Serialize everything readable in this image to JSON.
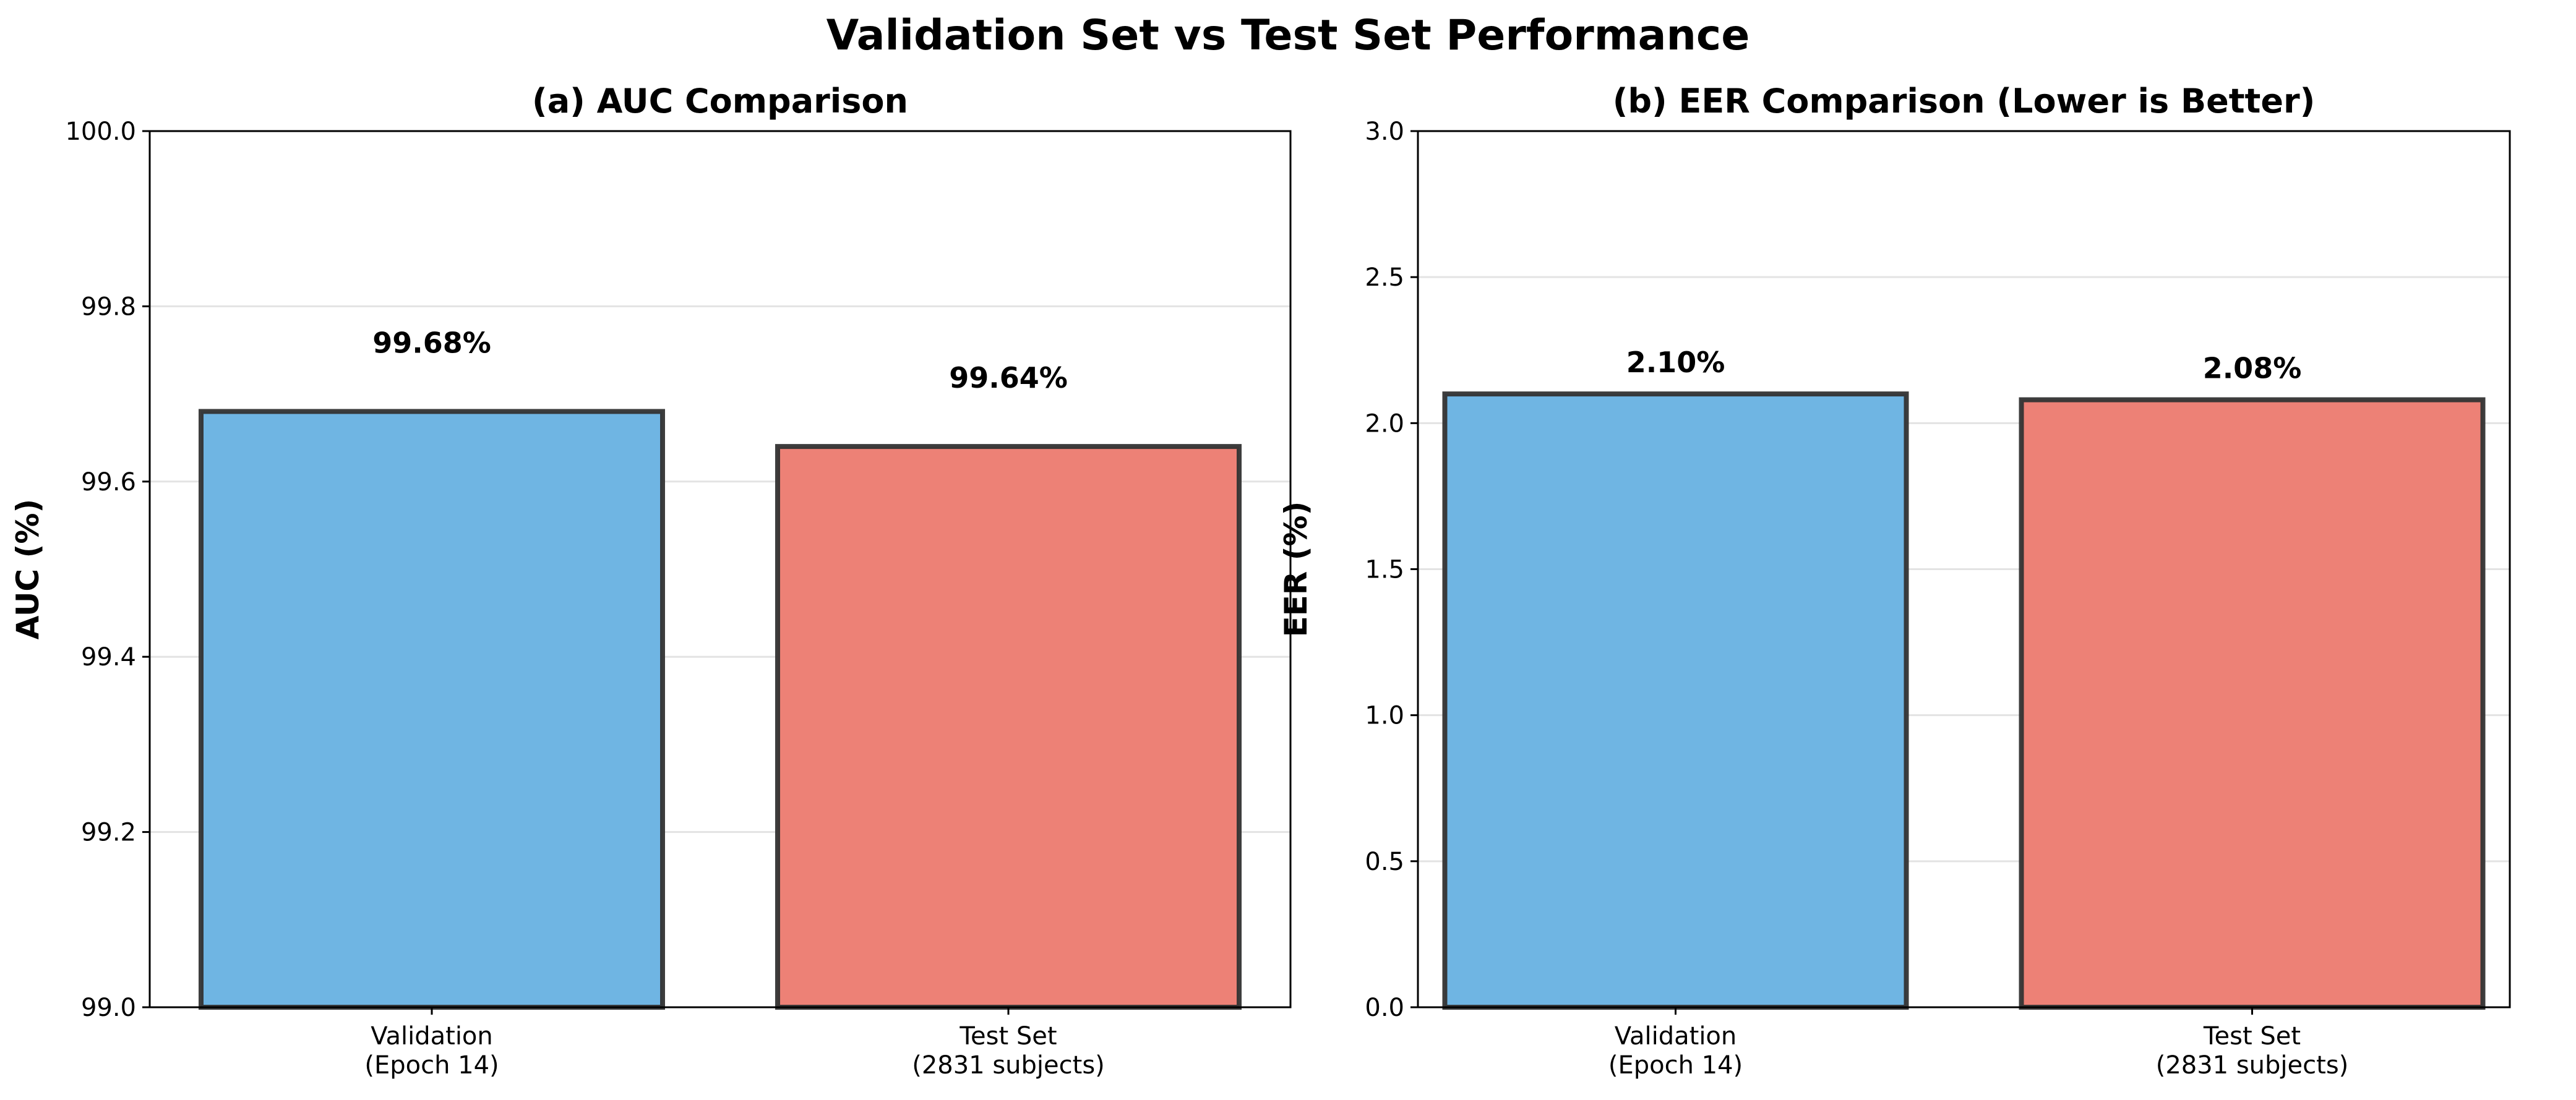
{
  "suptitle": "Validation Set vs Test Set Performance",
  "chart_data": [
    {
      "type": "bar",
      "title": "(a) AUC Comparison",
      "xlabel": "",
      "ylabel": "AUC (%)",
      "categories": [
        "Validation\n(Epoch 14)",
        "Test Set\n(2831 subjects)"
      ],
      "values": [
        99.68,
        99.64
      ],
      "value_labels": [
        "99.68%",
        "99.64%"
      ],
      "colors": [
        "#6fb5e3",
        "#ed8176"
      ],
      "edge_color": "#333333",
      "ylim": [
        99.0,
        100.0
      ],
      "yticks": [
        99.0,
        99.2,
        99.4,
        99.6,
        99.8,
        100.0
      ],
      "ytick_labels": [
        "99.0",
        "99.2",
        "99.4",
        "99.6",
        "99.8",
        "100.0"
      ],
      "grid": "y"
    },
    {
      "type": "bar",
      "title": "(b) EER Comparison (Lower is Better)",
      "xlabel": "",
      "ylabel": "EER (%)",
      "categories": [
        "Validation\n(Epoch 14)",
        "Test Set\n(2831 subjects)"
      ],
      "values": [
        2.1,
        2.08
      ],
      "value_labels": [
        "2.10%",
        "2.08%"
      ],
      "colors": [
        "#6fb5e3",
        "#ed8176"
      ],
      "edge_color": "#333333",
      "ylim": [
        0.0,
        3.0
      ],
      "yticks": [
        0.0,
        0.5,
        1.0,
        1.5,
        2.0,
        2.5,
        3.0
      ],
      "ytick_labels": [
        "0.0",
        "0.5",
        "1.0",
        "1.5",
        "2.0",
        "2.5",
        "3.0"
      ],
      "grid": "y"
    }
  ]
}
